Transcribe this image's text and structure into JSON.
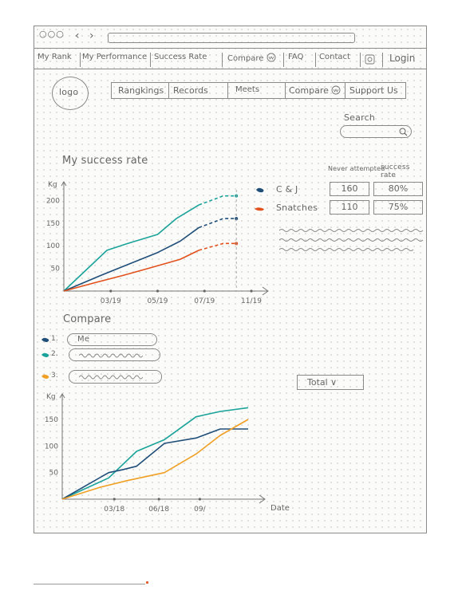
{
  "browser": {
    "controls": "○○○",
    "back": "‹",
    "forward": "›"
  },
  "nav": {
    "tabs": [
      "My Rank",
      "My Performance",
      "Success Rate",
      "Compare",
      "FAQ",
      "Contact",
      "Login"
    ]
  },
  "logo": "logo",
  "menu": {
    "items": [
      "Rangkings",
      "Records",
      "Meets",
      "Compare",
      "Support Us"
    ]
  },
  "search": {
    "label": "Search"
  },
  "success": {
    "title": "My success rate",
    "headers": {
      "attempted": "Never attempted",
      "rate": "success rate"
    },
    "rows": [
      {
        "label": "C & J",
        "attempted": "160",
        "rate": "80%",
        "color": "#1f4e79"
      },
      {
        "label": "Snatches",
        "attempted": "110",
        "rate": "75%",
        "color": "#e2501c"
      }
    ]
  },
  "compare": {
    "title": "Compare",
    "entries": [
      {
        "num": "1.",
        "name": "Me",
        "color": "#1f4e79"
      },
      {
        "num": "2.",
        "name": "",
        "color": "#1aa39a"
      },
      {
        "num": "3.",
        "name": "",
        "color": "#f0a024"
      }
    ],
    "dropdown": "Total ∨"
  },
  "chart_data": [
    {
      "type": "line",
      "title": "My success rate",
      "ylabel": "Kg",
      "xlabel": "",
      "ylim": [
        0,
        220
      ],
      "yticks": [
        50,
        100,
        150,
        200
      ],
      "xticks": [
        {
          "x": 0.25,
          "label": "03/19"
        },
        {
          "x": 0.5,
          "label": "05/19"
        },
        {
          "x": 0.75,
          "label": "07/19"
        },
        {
          "x": 1.0,
          "label": "11/19"
        }
      ],
      "series": [
        {
          "color": "#1aa39a",
          "points": [
            [
              0,
              0
            ],
            [
              0.23,
              90
            ],
            [
              0.34,
              105
            ],
            [
              0.5,
              125
            ],
            [
              0.6,
              160
            ],
            [
              0.72,
              190
            ]
          ],
          "proj": [
            [
              0.72,
              190
            ],
            [
              0.85,
              210
            ],
            [
              0.92,
              210
            ]
          ]
        },
        {
          "color": "#1f4e79",
          "points": [
            [
              0,
              0
            ],
            [
              0.2,
              35
            ],
            [
              0.32,
              55
            ],
            [
              0.5,
              85
            ],
            [
              0.62,
              110
            ],
            [
              0.72,
              140
            ]
          ],
          "proj": [
            [
              0.72,
              140
            ],
            [
              0.85,
              160
            ],
            [
              0.92,
              160
            ]
          ]
        },
        {
          "color": "#e2501c",
          "points": [
            [
              0,
              0
            ],
            [
              0.18,
              20
            ],
            [
              0.32,
              35
            ],
            [
              0.45,
              50
            ],
            [
              0.62,
              70
            ],
            [
              0.72,
              90
            ]
          ],
          "proj": [
            [
              0.72,
              90
            ],
            [
              0.85,
              105
            ],
            [
              0.92,
              105
            ]
          ]
        }
      ]
    },
    {
      "type": "line",
      "title": "",
      "ylabel": "Kg",
      "xlabel": "Date",
      "ylim": [
        0,
        180
      ],
      "yticks": [
        50,
        100,
        150
      ],
      "xticks": [
        {
          "x": 0.28,
          "label": "03/18"
        },
        {
          "x": 0.52,
          "label": "06/18"
        },
        {
          "x": 0.74,
          "label": "09/"
        }
      ],
      "series": [
        {
          "color": "#1aa39a",
          "points": [
            [
              0,
              0
            ],
            [
              0.25,
              40
            ],
            [
              0.4,
              90
            ],
            [
              0.55,
              112
            ],
            [
              0.72,
              155
            ],
            [
              0.85,
              165
            ],
            [
              1.0,
              172
            ]
          ]
        },
        {
          "color": "#1f4e79",
          "points": [
            [
              0,
              0
            ],
            [
              0.25,
              50
            ],
            [
              0.32,
              55
            ],
            [
              0.4,
              62
            ],
            [
              0.55,
              105
            ],
            [
              0.72,
              115
            ],
            [
              0.85,
              132
            ],
            [
              1.0,
              132
            ]
          ]
        },
        {
          "color": "#f0a024",
          "points": [
            [
              0,
              0
            ],
            [
              0.2,
              22
            ],
            [
              0.35,
              35
            ],
            [
              0.55,
              50
            ],
            [
              0.72,
              85
            ],
            [
              0.85,
              120
            ],
            [
              1.0,
              150
            ]
          ]
        }
      ]
    }
  ]
}
